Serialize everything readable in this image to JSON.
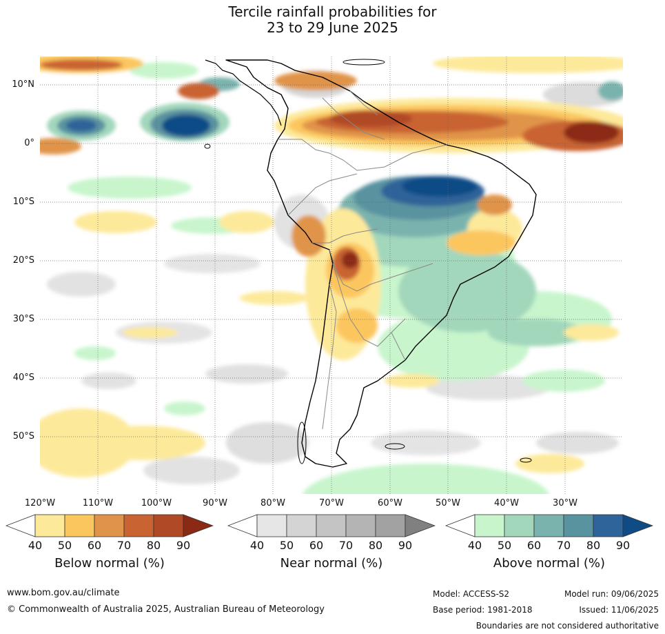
{
  "title": {
    "line1": "Tercile rainfall probabilities for",
    "line2": "23 to 29 June 2025"
  },
  "map": {
    "lat_labels": [
      "10°N",
      "0°",
      "10°S",
      "20°S",
      "30°S",
      "40°S",
      "50°S"
    ],
    "lon_labels": [
      "120°W",
      "110°W",
      "100°W",
      "90°W",
      "80°W",
      "70°W",
      "60°W",
      "50°W",
      "40°W",
      "30°W"
    ]
  },
  "legends": [
    {
      "title": "Below normal (%)",
      "ticks": [
        "40",
        "50",
        "60",
        "70",
        "80",
        "90"
      ],
      "colors": [
        "#fde99a",
        "#fcc65e",
        "#e0944a",
        "#c96331",
        "#b04a26",
        "#8b2a14"
      ]
    },
    {
      "title": "Near normal (%)",
      "ticks": [
        "40",
        "50",
        "60",
        "70",
        "80",
        "90"
      ],
      "colors": [
        "#e6e6e6",
        "#d4d4d4",
        "#c4c4c4",
        "#b4b4b4",
        "#a2a2a2",
        "#808080"
      ]
    },
    {
      "title": "Above normal (%)",
      "ticks": [
        "40",
        "50",
        "60",
        "70",
        "80",
        "90"
      ],
      "colors": [
        "#c8f5cc",
        "#a3d7bc",
        "#7ab3ae",
        "#5a93a0",
        "#2f649a",
        "#0f4c86"
      ]
    }
  ],
  "footer": {
    "url": "www.bom.gov.au/climate",
    "copyright": "© Commonwealth of Australia 2025, Australian Bureau of Meteorology",
    "model": "Model: ACCESS-S2",
    "model_run": "Model run: 09/06/2025",
    "base_period": "Base period: 1981-2018",
    "issued": "Issued: 11/06/2025",
    "disclaimer": "Boundaries are not considered authoritative"
  }
}
